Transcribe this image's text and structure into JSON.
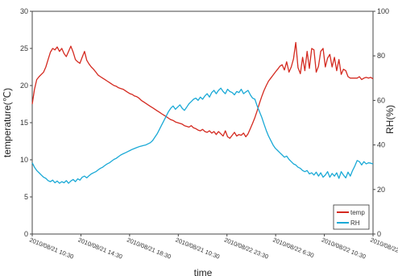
{
  "chart_data": {
    "type": "line",
    "xlabel": "time",
    "ylabel_left": "temperature(℃)",
    "ylabel_right": "RH(%)",
    "ylim_left": [
      0,
      30
    ],
    "ylim_right": [
      0,
      100
    ],
    "yticks_left": [
      "0",
      "5",
      "10",
      "15",
      "20",
      "25",
      "30"
    ],
    "yticks_right": [
      "0",
      "20",
      "40",
      "60",
      "80",
      "100"
    ],
    "xticks": [
      "2010/08/21 10:30",
      "2010/08/21 14:30",
      "2010/08/21 18:30",
      "2010/08/21 10:30",
      "2010/08/22 23:30",
      "2010/08/22 6:30",
      "2010/08/22 10:30",
      "2010/08/22 14:30"
    ],
    "x": [
      0,
      0.05,
      0.1,
      0.15,
      0.2,
      0.25,
      0.3,
      0.35,
      0.4,
      0.45,
      0.5,
      0.55,
      0.6,
      0.65,
      0.7,
      0.75,
      0.8,
      0.85,
      0.9,
      0.95,
      1.0,
      1.05,
      1.1,
      1.15,
      1.2,
      1.25,
      1.3,
      1.35,
      1.4,
      1.45,
      1.5,
      1.55,
      1.6,
      1.65,
      1.7,
      1.75,
      1.8,
      1.85,
      1.9,
      1.95,
      2.0,
      2.05,
      2.1,
      2.15,
      2.2,
      2.25,
      2.3,
      2.35,
      2.4,
      2.45,
      2.5,
      2.55,
      2.6,
      2.65,
      2.7,
      2.75,
      2.8,
      2.85,
      2.9,
      2.95,
      3.0,
      3.05,
      3.1,
      3.15,
      3.2,
      3.25,
      3.3,
      3.35,
      3.4,
      3.45,
      3.5,
      3.55,
      3.6,
      3.65,
      3.7,
      3.75,
      3.8,
      3.85,
      3.9,
      3.95,
      4.0,
      4.05,
      4.1,
      4.15,
      4.2,
      4.25,
      4.3,
      4.35,
      4.4,
      4.45,
      4.5,
      4.55,
      4.6,
      4.65,
      4.7,
      4.75,
      4.8,
      4.85,
      4.9,
      4.95,
      5.0,
      5.05,
      5.1,
      5.15,
      5.2,
      5.25,
      5.3,
      5.35,
      5.4,
      5.45,
      5.5,
      5.55,
      5.6,
      5.65,
      5.7,
      5.75,
      5.8,
      5.85,
      5.9,
      5.95,
      6.0,
      6.05,
      6.1,
      6.15,
      6.2,
      6.25,
      6.3,
      6.35,
      6.4,
      6.45,
      6.5,
      6.55,
      6.6,
      6.65,
      6.7,
      6.75,
      6.8,
      6.85,
      6.9,
      6.95,
      7.0,
      7.05,
      7.1,
      7.15,
      7.2,
      7.25,
      7.3,
      7.35,
      7.4,
      7.45,
      7.5
    ],
    "series": [
      {
        "name": "temp",
        "color": "#d42a20",
        "axis": "left",
        "values": [
          17.5,
          19.5,
          20.8,
          21.2,
          21.5,
          21.8,
          22.5,
          23.5,
          24.5,
          25.0,
          24.8,
          25.2,
          24.6,
          25.0,
          24.3,
          23.9,
          24.6,
          25.3,
          24.5,
          23.5,
          23.2,
          23.0,
          23.8,
          24.6,
          23.4,
          22.9,
          22.5,
          22.2,
          21.8,
          21.4,
          21.2,
          21.0,
          20.8,
          20.6,
          20.4,
          20.2,
          20.0,
          19.9,
          19.7,
          19.6,
          19.5,
          19.3,
          19.1,
          18.9,
          18.8,
          18.6,
          18.5,
          18.3,
          18.0,
          17.8,
          17.6,
          17.4,
          17.2,
          17.0,
          16.8,
          16.6,
          16.4,
          16.2,
          16.0,
          15.8,
          15.6,
          15.4,
          15.3,
          15.1,
          15.0,
          14.9,
          14.8,
          14.6,
          14.5,
          14.4,
          14.6,
          14.3,
          14.2,
          14.0,
          13.9,
          14.1,
          13.8,
          13.7,
          13.9,
          13.6,
          13.8,
          13.4,
          13.8,
          13.5,
          13.2,
          13.9,
          13.1,
          12.9,
          13.3,
          13.7,
          13.2,
          13.4,
          13.3,
          13.6,
          13.1,
          13.5,
          14.2,
          14.9,
          15.7,
          16.6,
          17.6,
          18.5,
          19.3,
          20.0,
          20.6,
          21.0,
          21.4,
          21.8,
          22.2,
          22.6,
          22.8,
          22.1,
          23.2,
          21.8,
          22.5,
          23.6,
          25.8,
          22.4,
          21.6,
          23.8,
          22.0,
          24.6,
          22.3,
          25.0,
          24.8,
          21.8,
          22.6,
          24.6,
          25.0,
          22.5,
          23.7,
          24.2,
          22.5,
          23.8,
          22.0,
          23.5,
          21.5,
          22.2,
          22.0,
          21.2,
          21.0,
          21.0,
          21.0,
          21.0,
          21.2,
          20.8,
          21.0,
          21.1,
          21.0,
          21.1,
          20.9
        ]
      },
      {
        "name": "RH",
        "color": "#1aa9d6",
        "axis": "right",
        "values": [
          32.0,
          30.0,
          28.5,
          27.5,
          26.5,
          25.5,
          25.0,
          24.0,
          23.5,
          24.2,
          23.0,
          23.8,
          22.8,
          23.5,
          23.0,
          24.0,
          22.8,
          23.8,
          24.5,
          23.5,
          24.8,
          24.2,
          25.5,
          26.0,
          25.2,
          26.2,
          27.0,
          27.5,
          28.0,
          28.8,
          29.5,
          30.0,
          30.8,
          31.5,
          32.0,
          32.8,
          33.5,
          34.0,
          34.8,
          35.5,
          36.0,
          36.5,
          37.0,
          37.5,
          38.0,
          38.4,
          38.8,
          39.2,
          39.5,
          39.8,
          40.0,
          40.5,
          41.0,
          42.0,
          43.5,
          45.0,
          47.0,
          49.0,
          51.0,
          53.0,
          55.0,
          56.5,
          57.5,
          56.0,
          57.0,
          58.0,
          56.5,
          55.5,
          57.0,
          58.5,
          59.5,
          60.5,
          61.0,
          60.0,
          61.5,
          60.5,
          62.0,
          63.0,
          61.5,
          63.5,
          64.5,
          63.0,
          64.5,
          65.5,
          64.0,
          63.0,
          65.0,
          64.0,
          63.5,
          62.5,
          64.0,
          63.5,
          65.0,
          63.0,
          63.8,
          64.5,
          62.5,
          61.0,
          60.5,
          57.5,
          55.0,
          52.5,
          49.5,
          46.5,
          44.0,
          42.0,
          40.0,
          38.5,
          37.5,
          36.5,
          35.5,
          34.5,
          35.0,
          33.5,
          32.5,
          31.5,
          31.0,
          30.0,
          29.5,
          28.5,
          28.0,
          28.5,
          27.0,
          27.5,
          26.5,
          27.8,
          26.0,
          27.5,
          25.5,
          26.5,
          28.0,
          25.5,
          27.2,
          26.0,
          27.5,
          25.0,
          28.0,
          26.5,
          25.2,
          27.8,
          26.0,
          28.5,
          30.5,
          33.0,
          32.5,
          31.0,
          32.5,
          31.5,
          32.0,
          31.8,
          31.5
        ]
      }
    ],
    "legend": {
      "placement": "bottom-right",
      "entries": [
        "temp",
        "RH"
      ]
    },
    "grid": false
  }
}
